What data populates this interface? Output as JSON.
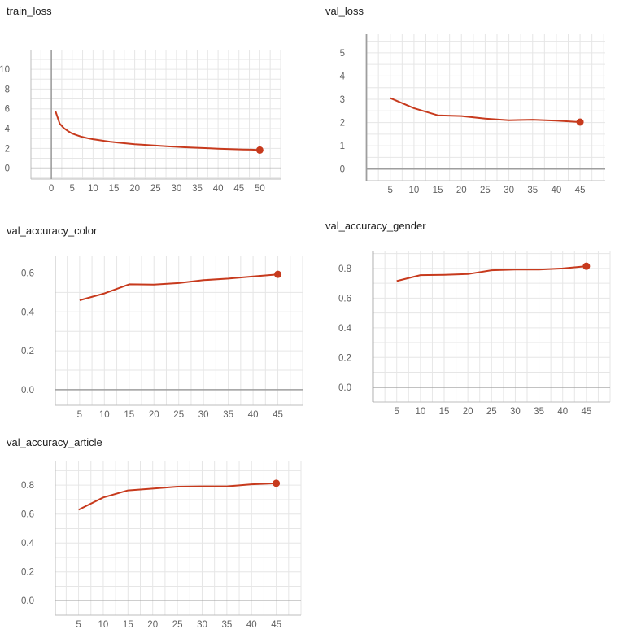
{
  "line_color": "#c73a1d",
  "grid_color": "#e6e6e6",
  "axis_color": "#9e9e9e",
  "chart_data": [
    {
      "id": "train_loss",
      "type": "line",
      "title": "train_loss",
      "xlabel": "",
      "ylabel": "",
      "xlim": [
        -4.9,
        55.2
      ],
      "ylim": [
        -1.1,
        11.9
      ],
      "xticks": [
        0,
        5,
        10,
        15,
        20,
        25,
        30,
        35,
        40,
        45,
        50
      ],
      "yticks": [
        0,
        2,
        4,
        6,
        8,
        10
      ],
      "y_decimals": 0,
      "grid": true,
      "x": [
        1,
        2,
        3,
        4,
        5,
        6,
        7,
        8,
        9,
        10,
        12,
        14,
        16,
        18,
        20,
        22,
        25,
        28,
        30,
        32,
        35,
        38,
        40,
        43,
        46,
        48,
        50
      ],
      "series": [
        {
          "values": [
            5.75,
            4.5,
            4.05,
            3.75,
            3.5,
            3.35,
            3.2,
            3.1,
            3.0,
            2.92,
            2.8,
            2.68,
            2.58,
            2.5,
            2.42,
            2.36,
            2.28,
            2.2,
            2.16,
            2.11,
            2.06,
            2.0,
            1.97,
            1.93,
            1.89,
            1.87,
            1.83
          ]
        }
      ]
    },
    {
      "id": "val_loss",
      "type": "line",
      "title": "val_loss",
      "xlabel": "",
      "ylabel": "",
      "xlim": [
        -0.1,
        50.3
      ],
      "ylim": [
        -0.5,
        5.8
      ],
      "xticks": [
        5,
        10,
        15,
        20,
        25,
        30,
        35,
        40,
        45
      ],
      "yticks": [
        0,
        1,
        2,
        3,
        4,
        5
      ],
      "y_decimals": 0,
      "grid": true,
      "x": [
        5,
        10,
        15,
        20,
        25,
        30,
        35,
        40,
        45
      ],
      "series": [
        {
          "values": [
            3.05,
            2.62,
            2.31,
            2.28,
            2.17,
            2.1,
            2.12,
            2.08,
            2.02
          ]
        }
      ]
    },
    {
      "id": "val_accuracy_color",
      "type": "line",
      "title": "val_accuracy_color",
      "xlabel": "",
      "ylabel": "",
      "xlim": [
        0.1,
        50.0
      ],
      "ylim": [
        -0.08,
        0.69
      ],
      "xticks": [
        5,
        10,
        15,
        20,
        25,
        30,
        35,
        40,
        45
      ],
      "yticks": [
        0,
        0.2,
        0.4,
        0.6
      ],
      "y_decimals": 1,
      "grid": true,
      "x": [
        5,
        10,
        15,
        20,
        25,
        30,
        35,
        40,
        45
      ],
      "series": [
        {
          "values": [
            0.46,
            0.495,
            0.542,
            0.54,
            0.548,
            0.563,
            0.571,
            0.582,
            0.593
          ]
        }
      ]
    },
    {
      "id": "val_accuracy_gender",
      "type": "line",
      "title": "val_accuracy_gender",
      "xlabel": "",
      "ylabel": "",
      "xlim": [
        -0.1,
        50.0
      ],
      "ylim": [
        -0.1,
        0.92
      ],
      "xticks": [
        5,
        10,
        15,
        20,
        25,
        30,
        35,
        40,
        45
      ],
      "yticks": [
        0,
        0.2,
        0.4,
        0.6,
        0.8
      ],
      "y_decimals": 1,
      "grid": true,
      "x": [
        5,
        10,
        15,
        20,
        25,
        30,
        35,
        40,
        45
      ],
      "series": [
        {
          "values": [
            0.715,
            0.755,
            0.757,
            0.762,
            0.788,
            0.792,
            0.793,
            0.8,
            0.815
          ]
        }
      ]
    },
    {
      "id": "val_accuracy_article",
      "type": "line",
      "title": "val_accuracy_article",
      "xlabel": "",
      "ylabel": "",
      "xlim": [
        0.3,
        50.0
      ],
      "ylim": [
        -0.1,
        0.97
      ],
      "xticks": [
        5,
        10,
        15,
        20,
        25,
        30,
        35,
        40,
        45
      ],
      "yticks": [
        0,
        0.2,
        0.4,
        0.6,
        0.8
      ],
      "y_decimals": 1,
      "grid": true,
      "x": [
        5,
        10,
        15,
        20,
        25,
        30,
        35,
        40,
        45
      ],
      "series": [
        {
          "values": [
            0.63,
            0.715,
            0.764,
            0.776,
            0.79,
            0.792,
            0.792,
            0.806,
            0.813
          ]
        }
      ]
    }
  ]
}
